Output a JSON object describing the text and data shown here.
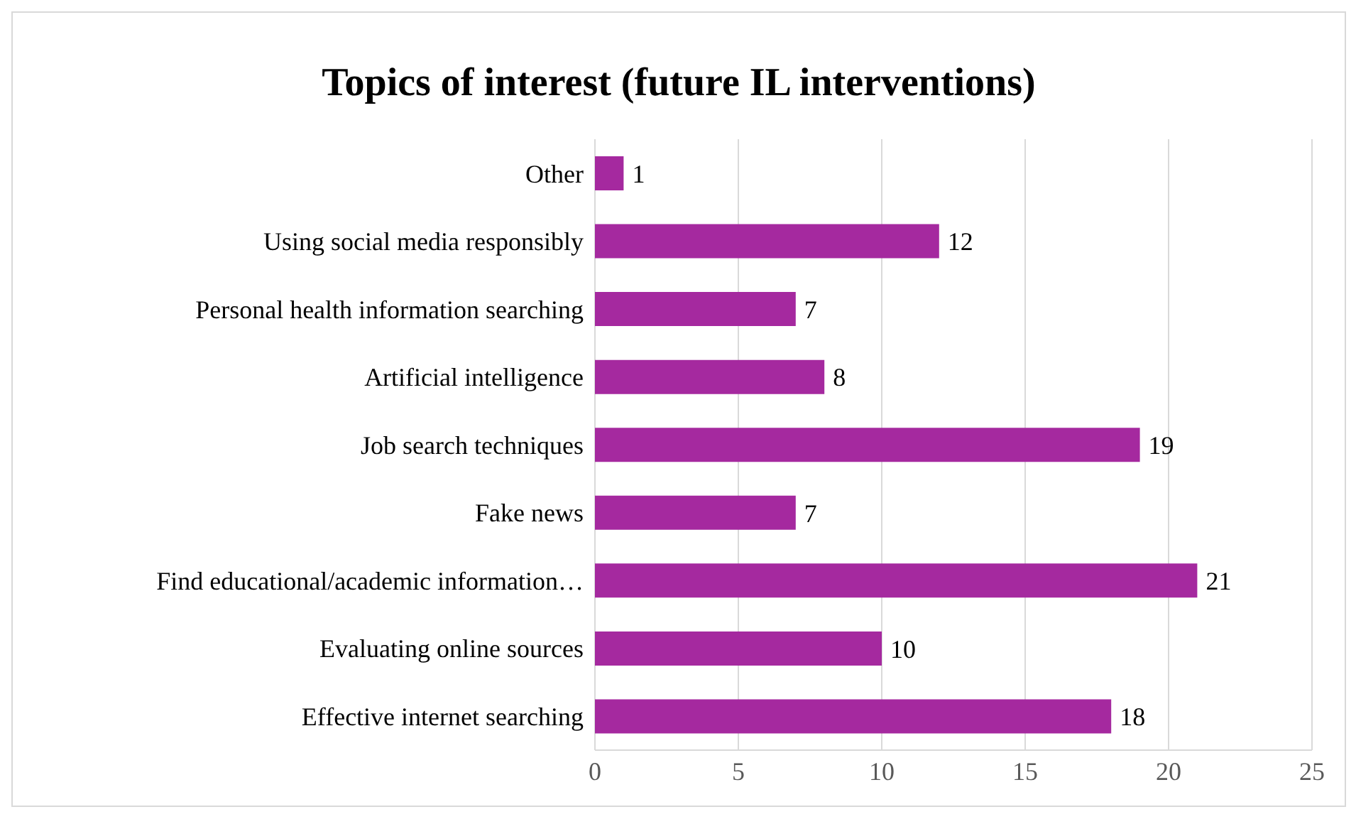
{
  "chart_data": {
    "type": "bar",
    "orientation": "horizontal",
    "title": "Topics of interest (future IL interventions)",
    "categories": [
      "Other",
      "Using social media responsibly",
      "Personal health information searching",
      "Artificial intelligence",
      "Job search techniques",
      "Fake news",
      "Find educational/academic information…",
      "Evaluating online sources",
      "Effective internet searching"
    ],
    "values": [
      1,
      12,
      7,
      8,
      19,
      7,
      21,
      10,
      18
    ],
    "color": "#a5299f",
    "xlim": [
      0,
      25
    ],
    "xticks": [
      0,
      5,
      10,
      15,
      20,
      25
    ],
    "grid": "x",
    "data_labels": true
  }
}
